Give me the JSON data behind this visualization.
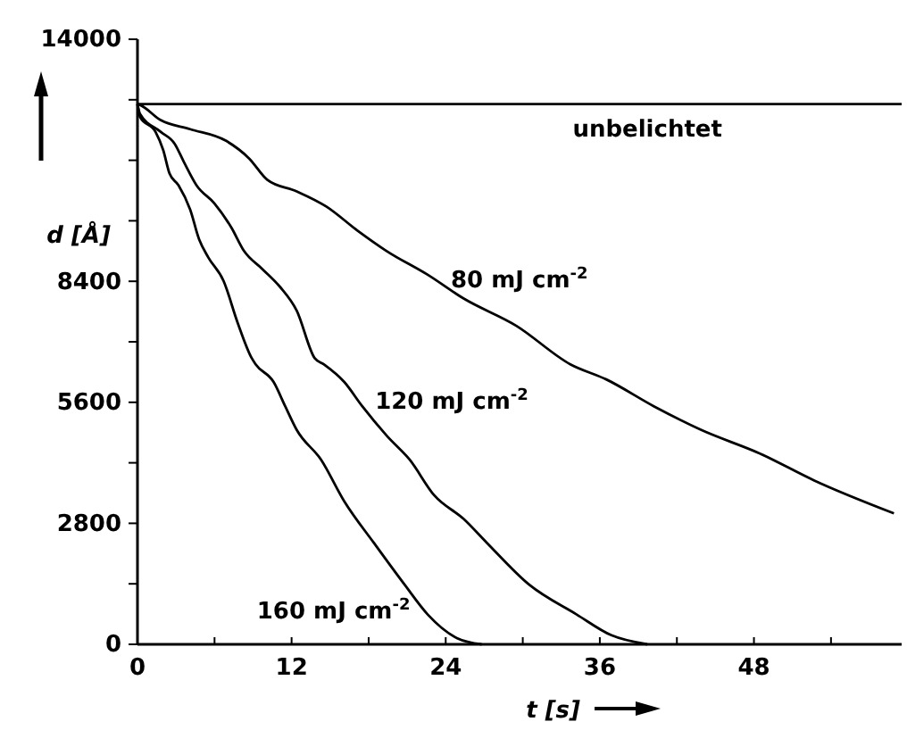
{
  "chart_data": {
    "type": "line",
    "xlabel": "t [s]",
    "ylabel": "d [Å]",
    "xlim": [
      0,
      59.5
    ],
    "ylim": [
      0,
      14000
    ],
    "xticks": [
      0,
      {
        "value": 6,
        "label": null
      },
      12,
      {
        "value": 18,
        "label": null
      },
      24,
      {
        "value": 30,
        "label": null
      },
      36,
      {
        "value": 42,
        "label": null
      },
      48,
      {
        "value": 54,
        "label": null
      }
    ],
    "yticks": [
      0,
      {
        "value": 1400,
        "label": null
      },
      2800,
      {
        "value": 4200,
        "label": null
      },
      5600,
      {
        "value": 7000,
        "label": null
      },
      8400,
      {
        "value": 9800,
        "label": null
      },
      {
        "value": 11200,
        "label": null
      },
      {
        "value": 12600,
        "label": null
      },
      14000
    ],
    "grid": false,
    "marker": "none",
    "line_style": "solid",
    "series": [
      {
        "name": "unbelichtet",
        "color": "#000000",
        "x": [
          0,
          59.5
        ],
        "values": [
          12500,
          12500
        ]
      },
      {
        "name": "80 mJ cm$^{-2}$",
        "color": "#000000",
        "x": [
          0,
          0.2,
          1.8,
          4.1,
          6.9,
          8.7,
          10.1,
          12.4,
          14.7,
          17.1,
          19.4,
          22.6,
          25.4,
          29.5,
          33.7,
          36.5,
          40.2,
          43.9,
          48.5,
          52.7,
          58.9
        ],
        "values": [
          12500,
          12480,
          12130,
          11920,
          11650,
          11240,
          10750,
          10480,
          10130,
          9580,
          9100,
          8550,
          8000,
          7370,
          6480,
          6130,
          5510,
          4960,
          4410,
          3790,
          3030
        ]
      },
      {
        "name": "120 mJ cm$^{-2}$",
        "color": "#000000",
        "x": [
          0,
          0.2,
          1.8,
          2.9,
          3.6,
          4.6,
          6.0,
          7.3,
          8.3,
          9.7,
          11.1,
          12.4,
          13.8,
          14.5,
          16.1,
          17.5,
          19.4,
          21.2,
          23.1,
          25.4,
          27.2,
          30.5,
          34.2,
          36.9,
          39.7
        ],
        "values": [
          12500,
          12270,
          11860,
          11580,
          11170,
          10620,
          10200,
          9650,
          9100,
          8690,
          8270,
          7720,
          6620,
          6480,
          6070,
          5510,
          4830,
          4270,
          3450,
          2900,
          2350,
          1380,
          690,
          210,
          0
        ]
      },
      {
        "name": "160 mJ cm$^{-2}$",
        "color": "#000000",
        "x": [
          0,
          0.2,
          1.4,
          2.0,
          2.5,
          3.2,
          4.1,
          4.8,
          5.5,
          6.7,
          7.8,
          8.9,
          9.2,
          10.6,
          11.5,
          12.4,
          14.3,
          16.1,
          18.4,
          20.8,
          22.6,
          24.9,
          26.8
        ],
        "values": [
          12500,
          12200,
          11860,
          11440,
          10890,
          10620,
          10060,
          9370,
          8960,
          8410,
          7440,
          6620,
          6480,
          6070,
          5510,
          4960,
          4270,
          3310,
          2350,
          1380,
          690,
          140,
          0
        ]
      }
    ]
  }
}
